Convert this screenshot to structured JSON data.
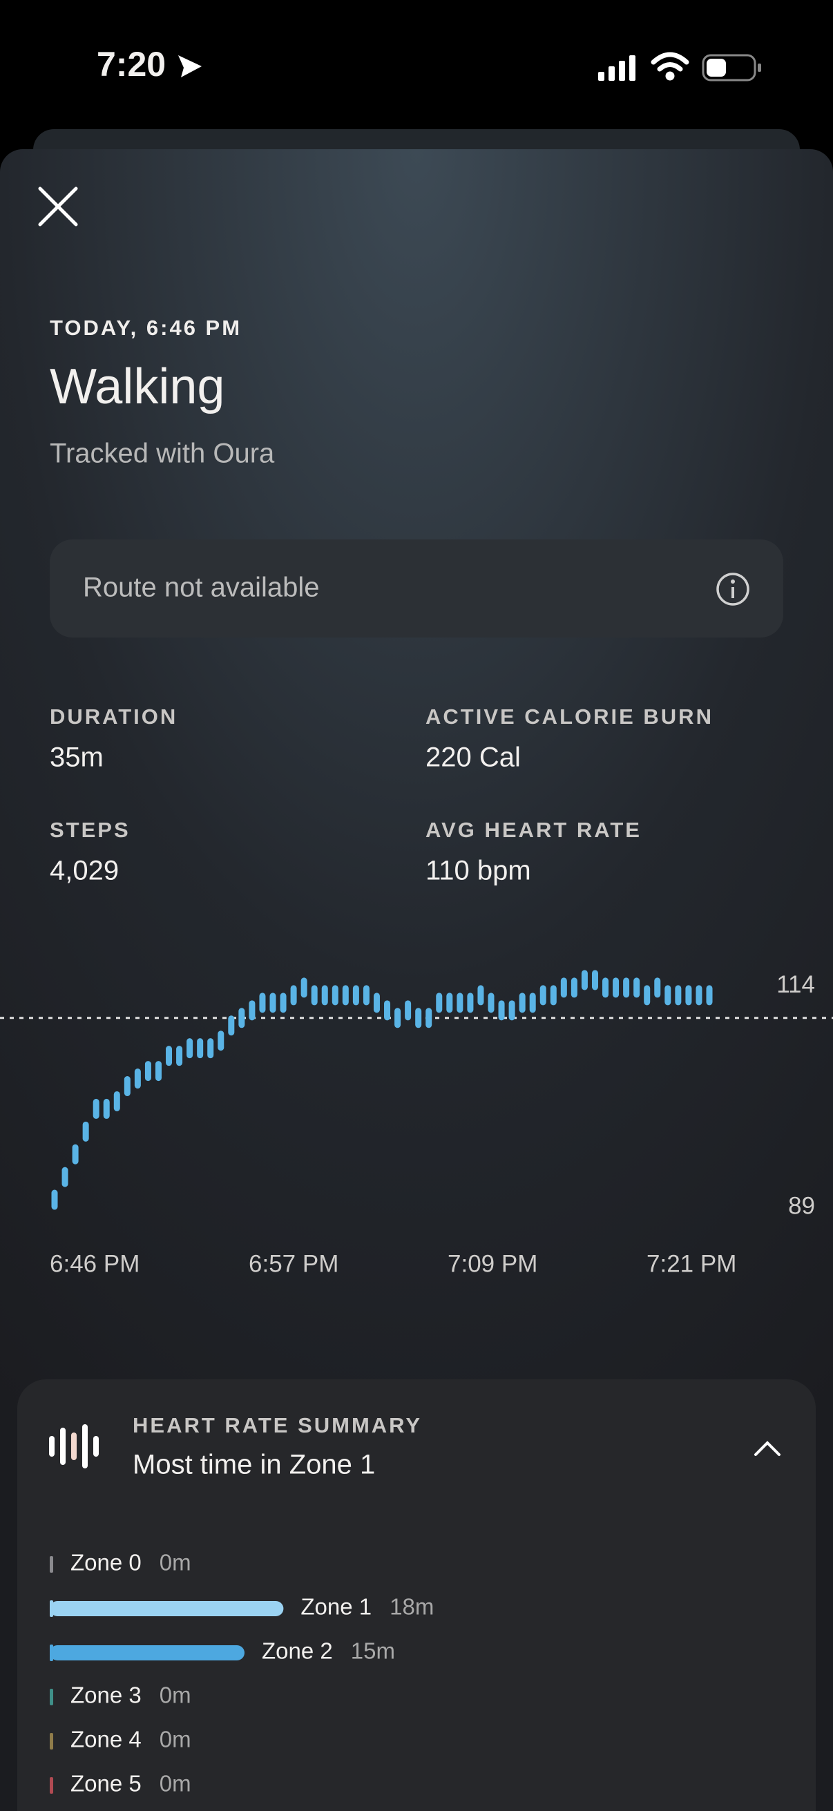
{
  "status_bar": {
    "time": "7:20"
  },
  "header": {
    "date": "TODAY, 6:46 PM",
    "title": "Walking",
    "subtitle": "Tracked with Oura"
  },
  "route": {
    "text": "Route not available"
  },
  "stats": [
    {
      "label": "DURATION",
      "value": "35m"
    },
    {
      "label": "ACTIVE CALORIE BURN",
      "value": "220 Cal"
    },
    {
      "label": "STEPS",
      "value": "4,029"
    },
    {
      "label": "AVG HEART RATE",
      "value": "110 bpm"
    }
  ],
  "chart_data": {
    "type": "bar",
    "color": "#5ab4e6",
    "values": [
      90,
      93,
      96,
      99,
      102,
      102,
      103,
      105,
      106,
      107,
      107,
      109,
      109,
      110,
      110,
      110,
      111,
      113,
      114,
      115,
      116,
      116,
      116,
      117,
      118,
      117,
      117,
      117,
      117,
      117,
      117,
      116,
      115,
      114,
      115,
      114,
      114,
      116,
      116,
      116,
      116,
      117,
      116,
      115,
      115,
      116,
      116,
      117,
      117,
      118,
      118,
      119,
      119,
      118,
      118,
      118,
      118,
      117,
      118,
      117,
      117,
      117,
      117,
      117
    ],
    "ylim": [
      89,
      120
    ],
    "yticks": [
      114,
      89
    ],
    "xticks": [
      "6:46 PM",
      "6:57 PM",
      "7:09 PM",
      "7:21 PM"
    ]
  },
  "summary": {
    "heading": "HEART RATE SUMMARY",
    "text": "Most time in Zone 1",
    "zones": [
      {
        "name": "Zone 0",
        "minutes": 0,
        "label": "0m",
        "color": "#8a8a8e"
      },
      {
        "name": "Zone 1",
        "minutes": 18,
        "label": "18m",
        "color": "#9bd3f2"
      },
      {
        "name": "Zone 2",
        "minutes": 15,
        "label": "15m",
        "color": "#4da8e0"
      },
      {
        "name": "Zone 3",
        "minutes": 0,
        "label": "0m",
        "color": "#3f8f88"
      },
      {
        "name": "Zone 4",
        "minutes": 0,
        "label": "0m",
        "color": "#8f7c4a"
      },
      {
        "name": "Zone 5",
        "minutes": 0,
        "label": "0m",
        "color": "#b04a52"
      }
    ]
  }
}
